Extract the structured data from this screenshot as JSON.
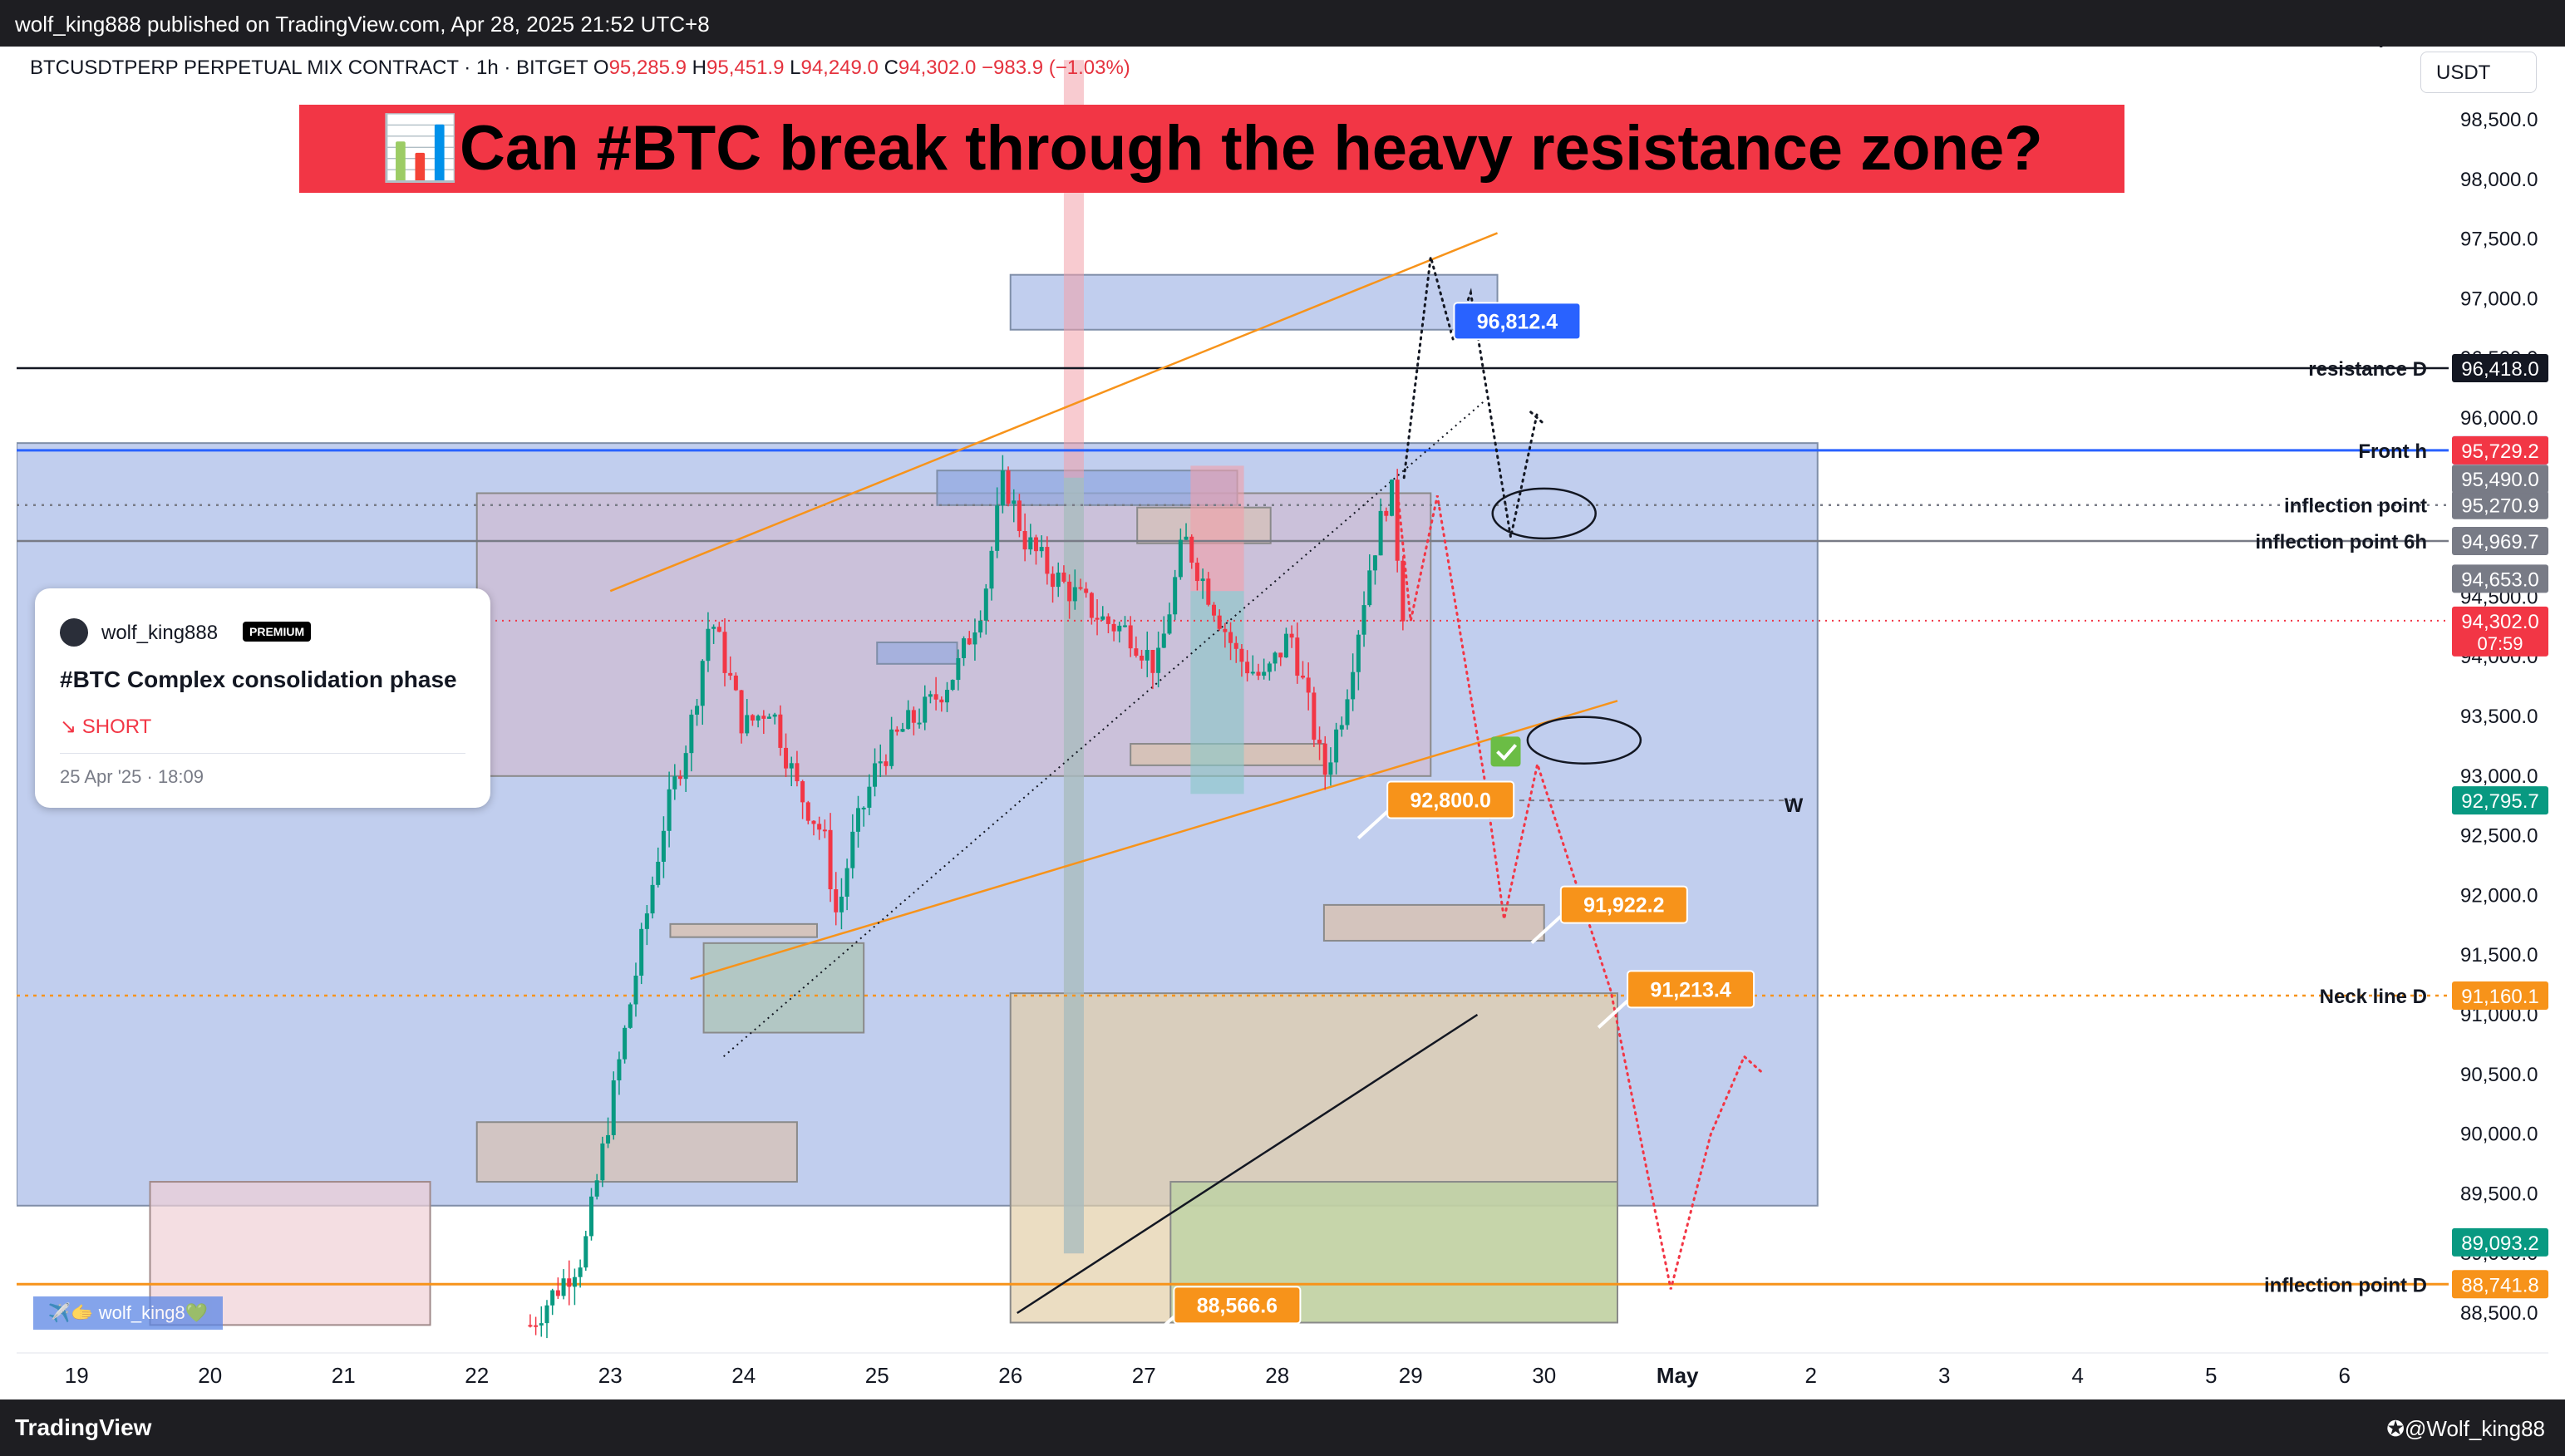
{
  "topbar": {
    "publish_line": "wolf_king888 published on TradingView.com, Apr 28, 2025 21:52 UTC+8"
  },
  "header": {
    "symbol": "BTCUSDTPERP PERPETUAL MIX CONTRACT · 1h · BITGET",
    "o_label": "O",
    "o": "95,285.9",
    "h_label": "H",
    "h": "95,451.9",
    "l_label": "L",
    "l": "94,249.0",
    "c_label": "C",
    "c": "94,302.0",
    "change": "−983.9 (−1.03%)"
  },
  "headline": "📊Can #BTC break through the heavy resistance zone?",
  "currency_button": "USDT",
  "idea_card": {
    "user": "wolf_king888",
    "badge": "PREMIUM",
    "title": "#BTC Complex consolidation phase",
    "direction": "↘ SHORT",
    "date": "25 Apr '25 · 18:09"
  },
  "watermark": "✈️🫱 wolf_king8💚",
  "bottombar": {
    "logo": "TradingView",
    "handle": "✪@Wolf_king88"
  },
  "colors": {
    "up": "#089981",
    "down": "#f23645",
    "orange": "#f7931a",
    "blue": "#2962ff",
    "zone_blue": "#b4c3e8"
  },
  "chart_data": {
    "type": "candlestick",
    "interval": "1h",
    "ylim": [
      88400,
      99000
    ],
    "y_ticks": [
      88500,
      89000,
      89500,
      90000,
      90500,
      91000,
      91500,
      92000,
      92500,
      93000,
      93500,
      94000,
      94500,
      95000,
      95500,
      96000,
      96500,
      97000,
      97500,
      98000,
      98500
    ],
    "y_tick_labels": [
      "88,500.0",
      "89,000.0",
      "89,500.0",
      "90,000.0",
      "90,500.0",
      "91,000.0",
      "91,500.0",
      "92,000.0",
      "92,500.0",
      "93,000.0",
      "93,500.0",
      "94,000.0",
      "94,500.0",
      "95,000.0",
      "95,500.0",
      "96,000.0",
      "96,500.0",
      "97,000.0",
      "97,500.0",
      "98,000.0",
      "98,500.0"
    ],
    "x_ticks": [
      {
        "t": 19,
        "label": "19"
      },
      {
        "t": 20,
        "label": "20"
      },
      {
        "t": 21,
        "label": "21"
      },
      {
        "t": 22,
        "label": "22"
      },
      {
        "t": 23,
        "label": "23"
      },
      {
        "t": 24,
        "label": "24"
      },
      {
        "t": 25,
        "label": "25"
      },
      {
        "t": 26,
        "label": "26"
      },
      {
        "t": 27,
        "label": "27"
      },
      {
        "t": 28,
        "label": "28"
      },
      {
        "t": 29,
        "label": "29"
      },
      {
        "t": 30,
        "label": "30"
      },
      {
        "t": 31,
        "label": "May"
      },
      {
        "t": 32,
        "label": "2"
      },
      {
        "t": 33,
        "label": "3"
      },
      {
        "t": 34,
        "label": "4"
      },
      {
        "t": 35,
        "label": "5"
      },
      {
        "t": 36,
        "label": "6"
      }
    ],
    "price_path": [
      [
        22.4,
        88400
      ],
      [
        22.8,
        89000
      ],
      [
        23.0,
        90200
      ],
      [
        23.2,
        91400
      ],
      [
        23.4,
        92600
      ],
      [
        23.6,
        93400
      ],
      [
        23.75,
        94350
      ],
      [
        23.9,
        93800
      ],
      [
        24.0,
        93400
      ],
      [
        24.2,
        93600
      ],
      [
        24.4,
        92900
      ],
      [
        24.6,
        92500
      ],
      [
        24.7,
        91800
      ],
      [
        24.8,
        92400
      ],
      [
        25.0,
        93100
      ],
      [
        25.2,
        93400
      ],
      [
        25.4,
        93600
      ],
      [
        25.6,
        93900
      ],
      [
        25.8,
        94500
      ],
      [
        25.95,
        95500
      ],
      [
        26.1,
        95000
      ],
      [
        26.3,
        94700
      ],
      [
        26.5,
        94500
      ],
      [
        26.7,
        94300
      ],
      [
        26.9,
        94200
      ],
      [
        27.1,
        93900
      ],
      [
        27.3,
        95000
      ],
      [
        27.5,
        94500
      ],
      [
        27.7,
        94000
      ],
      [
        27.9,
        93800
      ],
      [
        28.1,
        94200
      ],
      [
        28.25,
        93500
      ],
      [
        28.35,
        93000
      ],
      [
        28.5,
        93600
      ],
      [
        28.7,
        94800
      ],
      [
        28.85,
        95450
      ],
      [
        28.95,
        94300
      ]
    ],
    "annotations": {
      "horizontal_lines": [
        {
          "label": "resistance D",
          "price": 96418.0,
          "value": "96,418.0",
          "color": "#131722"
        },
        {
          "label": "Front h",
          "price": 95729.2,
          "value": "95,729.2",
          "color": "#2962ff"
        },
        {
          "label": "inflection point",
          "price": 95270.9,
          "value": "95,270.9",
          "color": "#787b86"
        },
        {
          "label": "inflection point 6h",
          "price": 94969.7,
          "value": "94,969.7",
          "color": "#787b86"
        },
        {
          "label": "Neck line D",
          "price": 91160.1,
          "value": "91,160.1",
          "color": "#f7931a"
        },
        {
          "label": "inflection point D",
          "price": 88741.8,
          "value": "88,741.8",
          "color": "#f7931a"
        }
      ],
      "price_tags": [
        {
          "price": 95729.2,
          "value": "95,729.2",
          "color": "#f23645"
        },
        {
          "price": 95490.0,
          "value": "95,490.0",
          "color": "#787b86"
        },
        {
          "price": 94653.0,
          "value": "94,653.0",
          "color": "#787b86"
        },
        {
          "price": 94302.0,
          "value": "94,302.0",
          "color": "#f23645",
          "countdown": "07:59"
        },
        {
          "price": 92795.7,
          "value": "92,795.7",
          "color": "#089981"
        },
        {
          "price": 89093.2,
          "value": "89,093.2",
          "color": "#089981"
        }
      ],
      "callouts": [
        {
          "value": "96,812.4",
          "t": 29.45,
          "price": 96812.4,
          "color": "#2962ff"
        },
        {
          "value": "92,800.0",
          "t": 28.95,
          "price": 92800.0,
          "color": "#f7931a"
        },
        {
          "value": "91,922.2",
          "t": 30.25,
          "price": 91922.2,
          "color": "#f7931a"
        },
        {
          "value": "91,213.4",
          "t": 30.75,
          "price": 91213.4,
          "color": "#f7931a"
        },
        {
          "value": "88,566.6",
          "t": 27.35,
          "price": 88566.6,
          "color": "#f7931a"
        }
      ],
      "w_marker": "W",
      "partial_label": "inflection point"
    }
  }
}
